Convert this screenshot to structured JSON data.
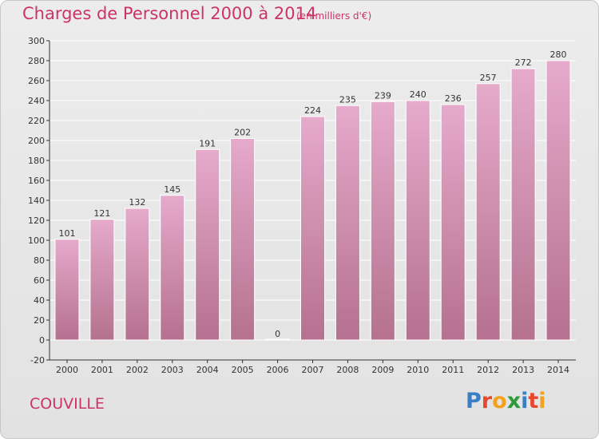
{
  "header": {
    "title": "Charges de Personnel 2000 à 2014",
    "unit": "(en milliers d'€)"
  },
  "footer": {
    "commune": "COUVILLE",
    "logo": "Proxiti"
  },
  "colors": {
    "title": "#cc3366",
    "bar_top": "#e6aacb",
    "bar_bottom": "#b5718f",
    "axis": "#333333",
    "grid": "#ffffff",
    "logo_letters": [
      "#3a7fc4",
      "#e8472f",
      "#f4a11d",
      "#2e9a3c",
      "#3a7fc4",
      "#e8472f",
      "#f4a11d"
    ]
  },
  "chart_data": {
    "type": "bar",
    "title": "Charges de Personnel 2000 à 2014",
    "subtitle": "(en milliers d'€)",
    "categories": [
      "2000",
      "2001",
      "2002",
      "2003",
      "2004",
      "2005",
      "2006",
      "2007",
      "2008",
      "2009",
      "2010",
      "2011",
      "2012",
      "2013",
      "2014"
    ],
    "values": [
      101,
      121,
      132,
      145,
      191,
      202,
      0,
      224,
      235,
      239,
      240,
      236,
      257,
      272,
      280
    ],
    "ylim": [
      -20,
      300
    ],
    "yticks": [
      -20,
      0,
      20,
      40,
      60,
      80,
      100,
      120,
      140,
      160,
      180,
      200,
      220,
      240,
      260,
      280,
      300
    ],
    "grid": true,
    "xlabel": "",
    "ylabel": ""
  }
}
